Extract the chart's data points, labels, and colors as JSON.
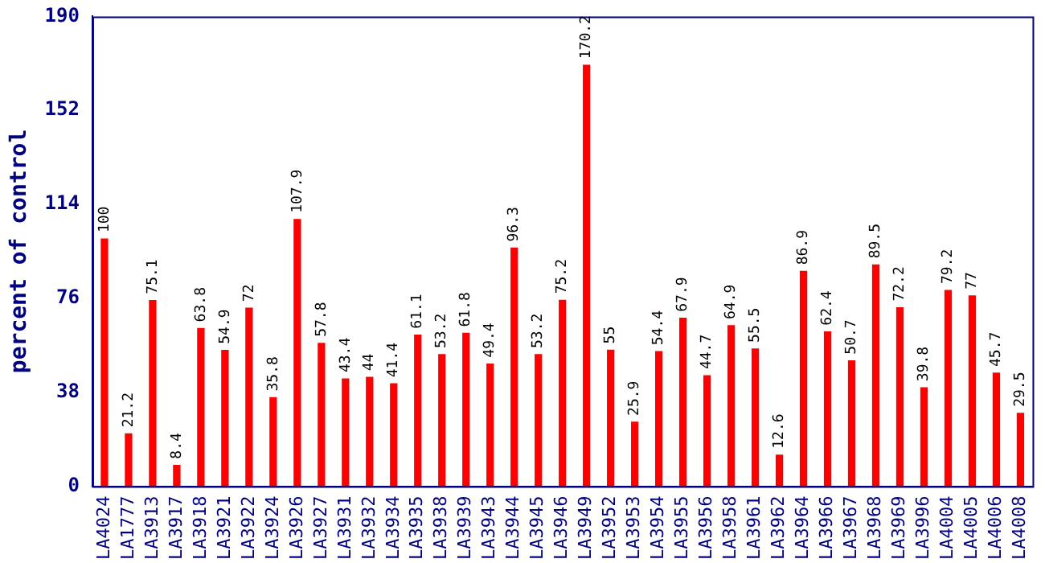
{
  "chart_data": {
    "type": "bar",
    "ylabel": "percent of control",
    "categories": [
      "LA4024",
      "LA1777",
      "LA3913",
      "LA3917",
      "LA3918",
      "LA3921",
      "LA3922",
      "LA3924",
      "LA3926",
      "LA3927",
      "LA3931",
      "LA3932",
      "LA3934",
      "LA3935",
      "LA3938",
      "LA3939",
      "LA3943",
      "LA3944",
      "LA3945",
      "LA3946",
      "LA3949",
      "LA3952",
      "LA3953",
      "LA3954",
      "LA3955",
      "LA3956",
      "LA3958",
      "LA3961",
      "LA3962",
      "LA3964",
      "LA3966",
      "LA3967",
      "LA3968",
      "LA3969",
      "LA3996",
      "LA4004",
      "LA4005",
      "LA4006",
      "LA4008"
    ],
    "values": [
      100,
      21.2,
      75.1,
      8.4,
      63.8,
      54.9,
      72,
      35.8,
      107.9,
      57.8,
      43.4,
      44,
      41.4,
      61.1,
      53.2,
      61.8,
      49.4,
      96.3,
      53.2,
      75.2,
      170.2,
      55,
      25.9,
      54.4,
      67.9,
      44.7,
      64.9,
      55.5,
      12.6,
      86.9,
      62.4,
      50.7,
      89.5,
      72.2,
      39.8,
      79.2,
      77,
      45.7,
      29.5
    ],
    "color": "#ff0000",
    "ylim": [
      0,
      190
    ],
    "yticks": [
      0,
      38,
      76,
      114,
      152,
      190
    ],
    "grid": false,
    "legend": false,
    "data_labels": true
  }
}
